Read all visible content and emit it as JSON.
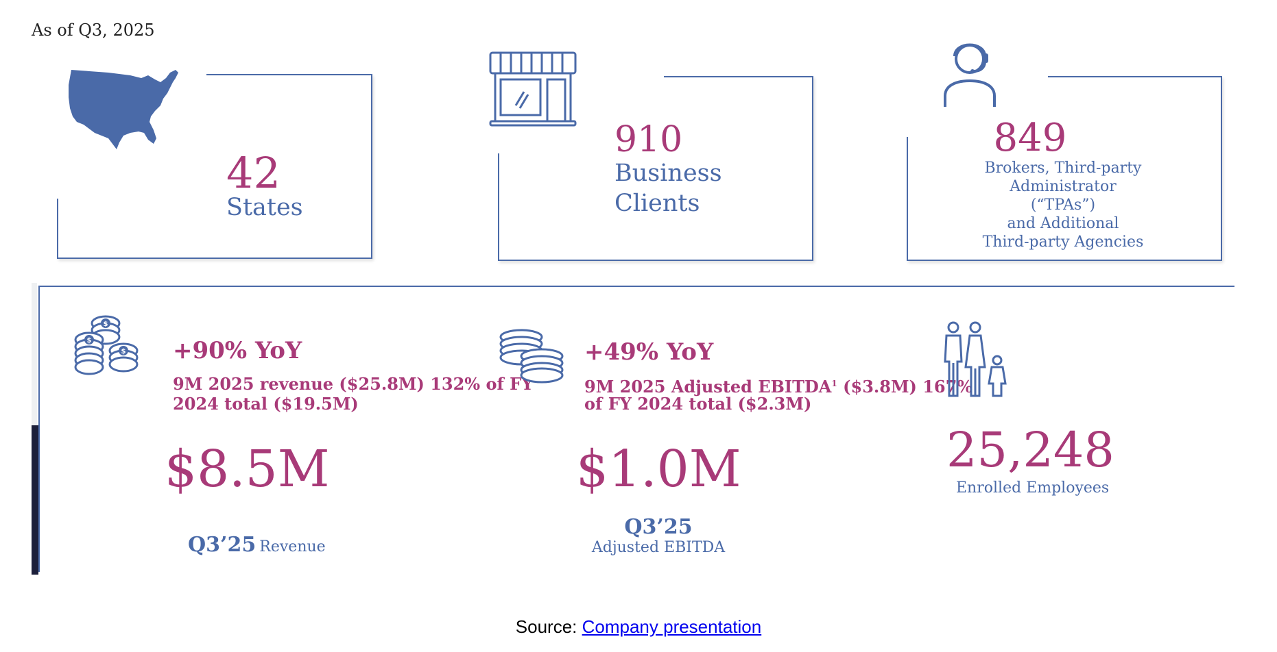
{
  "header": {
    "as_of": "As of Q3, 2025"
  },
  "stats": [
    {
      "value": "42",
      "label": "States",
      "icon": "usa-map-icon"
    },
    {
      "value": "910",
      "label_line1": "Business",
      "label_line2": "Clients",
      "icon": "storefront-icon"
    },
    {
      "value": "849",
      "lines": [
        "Brokers, Third-party",
        "Administrator",
        "(“TPAs”)",
        "and Additional",
        "Third-party Agencies"
      ],
      "icon": "headset-person-icon"
    }
  ],
  "metrics": {
    "revenue": {
      "yoy": "+90% YoY",
      "detail_line1": "9M 2025 revenue ($25.8M) 132% of FY",
      "detail_line2": "2024 total ($19.5M)",
      "value": "$8.5M",
      "period": "Q3’25",
      "label": "Revenue",
      "icon": "dollar-coins-icon"
    },
    "ebitda": {
      "yoy": "+49% YoY",
      "detail_line1_a": "9M 2025 Adjusted EBITDA",
      "detail_sup": "1",
      "detail_line1_b": " ($3.8M) 167%",
      "detail_line2": "of FY 2024 total ($2.3M)",
      "value": "$1.0M",
      "period": "Q3’25",
      "label": "Adjusted EBITDA",
      "icon": "coin-stacks-icon"
    },
    "employees": {
      "value": "25,248",
      "label": "Enrolled Employees",
      "icon": "family-icon"
    }
  },
  "footer": {
    "source_prefix": "Source: ",
    "source_link": "Company presentation"
  },
  "colors": {
    "magenta": "#a83a78",
    "blue": "#4a6aa8",
    "dark": "#1c1f3a"
  }
}
